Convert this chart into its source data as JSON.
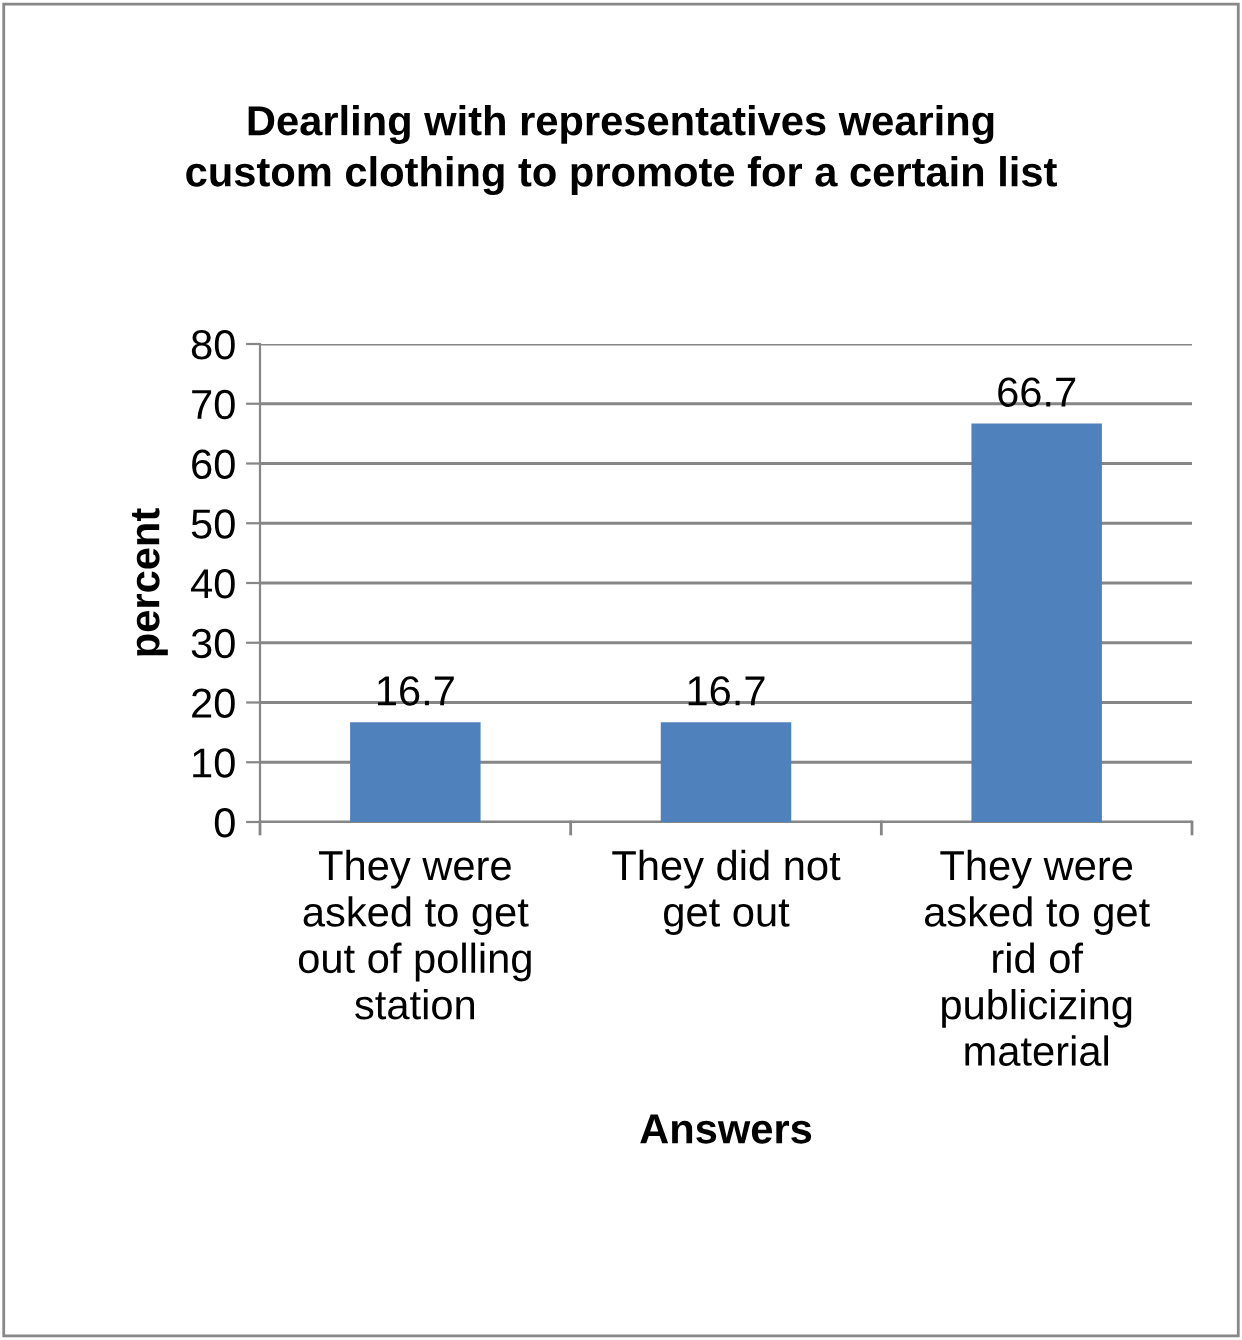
{
  "chart_data": {
    "type": "bar",
    "title": "Dearling with representatives wearing\ncustom clothing to promote for a certain list",
    "xlabel": "Answers",
    "ylabel": "percent",
    "categories": [
      "They were\nasked to get\nout of polling\nstation",
      "They did not\nget out",
      "They were\nasked to get\nrid of\npublicizing\nmaterial"
    ],
    "values": [
      16.7,
      16.7,
      66.7
    ],
    "color": "#4f81bd",
    "ylim": [
      0,
      80
    ],
    "yticks": [
      0,
      10,
      20,
      30,
      40,
      50,
      60,
      70,
      80
    ],
    "grid": "y",
    "data_labels": true
  }
}
